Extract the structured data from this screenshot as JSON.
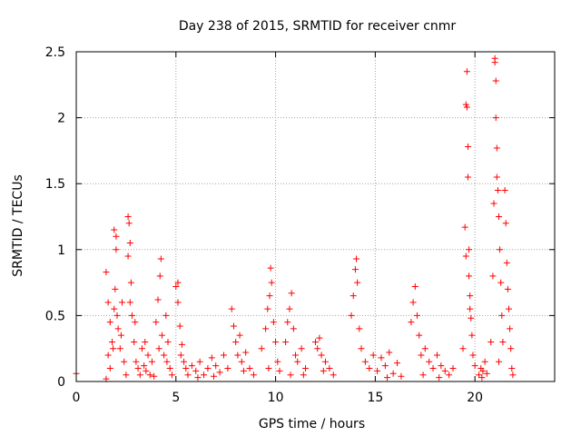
{
  "chart_data": {
    "type": "scatter",
    "title": "Day 238 of 2015, SRMTID for receiver cnmr",
    "xlabel": "GPS time / hours",
    "ylabel": "SRMTID / TECUs",
    "xlim": [
      0,
      24
    ],
    "ylim": [
      0,
      2.5
    ],
    "x_ticks": [
      0,
      5,
      10,
      15,
      20
    ],
    "x_tick_labels": [
      "0",
      "5",
      "10",
      "15",
      "20"
    ],
    "y_ticks": [
      0,
      0.5,
      1,
      1.5,
      2,
      2.5
    ],
    "y_tick_labels": [
      "0",
      "0.5",
      "1",
      "1.5",
      "2",
      "2.5"
    ],
    "grid": true,
    "marker": "+",
    "series": [
      {
        "name": "SRMTID",
        "color": "#ff0000",
        "points": [
          [
            0.0,
            0.06
          ],
          [
            1.5,
            0.83
          ],
          [
            1.6,
            0.6
          ],
          [
            1.7,
            0.45
          ],
          [
            1.8,
            0.3
          ],
          [
            1.6,
            0.2
          ],
          [
            1.7,
            0.1
          ],
          [
            1.5,
            0.02
          ],
          [
            1.9,
            0.55
          ],
          [
            1.95,
            0.7
          ],
          [
            2.0,
            1.0
          ],
          [
            2.0,
            1.1
          ],
          [
            1.9,
            1.15
          ],
          [
            2.1,
            0.4
          ],
          [
            2.2,
            0.25
          ],
          [
            2.05,
            0.5
          ],
          [
            2.3,
            0.6
          ],
          [
            2.4,
            0.15
          ],
          [
            2.5,
            0.05
          ],
          [
            2.25,
            0.35
          ],
          [
            1.85,
            0.25
          ],
          [
            2.6,
            1.25
          ],
          [
            2.65,
            1.2
          ],
          [
            2.7,
            1.05
          ],
          [
            2.6,
            0.95
          ],
          [
            2.75,
            0.75
          ],
          [
            2.8,
            0.5
          ],
          [
            2.9,
            0.3
          ],
          [
            3.0,
            0.15
          ],
          [
            2.95,
            0.45
          ],
          [
            2.7,
            0.6
          ],
          [
            3.1,
            0.1
          ],
          [
            3.2,
            0.05
          ],
          [
            3.3,
            0.25
          ],
          [
            3.4,
            0.12
          ],
          [
            3.5,
            0.08
          ],
          [
            3.6,
            0.2
          ],
          [
            3.7,
            0.05
          ],
          [
            3.8,
            0.15
          ],
          [
            3.9,
            0.04
          ],
          [
            3.45,
            0.3
          ],
          [
            4.0,
            0.45
          ],
          [
            4.1,
            0.62
          ],
          [
            4.2,
            0.8
          ],
          [
            4.25,
            0.93
          ],
          [
            4.3,
            0.35
          ],
          [
            4.4,
            0.2
          ],
          [
            4.5,
            0.5
          ],
          [
            4.6,
            0.3
          ],
          [
            4.7,
            0.1
          ],
          [
            4.8,
            0.05
          ],
          [
            4.15,
            0.25
          ],
          [
            4.55,
            0.15
          ],
          [
            5.0,
            0.72
          ],
          [
            5.1,
            0.6
          ],
          [
            5.2,
            0.42
          ],
          [
            5.3,
            0.28
          ],
          [
            5.1,
            0.75
          ],
          [
            5.4,
            0.15
          ],
          [
            5.5,
            0.1
          ],
          [
            5.6,
            0.05
          ],
          [
            5.25,
            0.2
          ],
          [
            5.8,
            0.12
          ],
          [
            6.0,
            0.08
          ],
          [
            6.2,
            0.15
          ],
          [
            6.4,
            0.05
          ],
          [
            6.6,
            0.1
          ],
          [
            6.8,
            0.18
          ],
          [
            7.0,
            0.12
          ],
          [
            7.2,
            0.07
          ],
          [
            7.4,
            0.2
          ],
          [
            7.6,
            0.1
          ],
          [
            6.1,
            0.03
          ],
          [
            6.9,
            0.04
          ],
          [
            7.8,
            0.55
          ],
          [
            7.9,
            0.42
          ],
          [
            8.0,
            0.3
          ],
          [
            8.1,
            0.2
          ],
          [
            8.2,
            0.35
          ],
          [
            8.3,
            0.15
          ],
          [
            8.5,
            0.22
          ],
          [
            8.7,
            0.1
          ],
          [
            8.9,
            0.05
          ],
          [
            8.4,
            0.08
          ],
          [
            9.3,
            0.25
          ],
          [
            9.5,
            0.4
          ],
          [
            9.6,
            0.55
          ],
          [
            9.7,
            0.65
          ],
          [
            9.75,
            0.86
          ],
          [
            9.8,
            0.75
          ],
          [
            9.9,
            0.45
          ],
          [
            10.0,
            0.3
          ],
          [
            10.1,
            0.15
          ],
          [
            10.2,
            0.08
          ],
          [
            9.65,
            0.1
          ],
          [
            10.5,
            0.3
          ],
          [
            10.6,
            0.45
          ],
          [
            10.7,
            0.55
          ],
          [
            10.8,
            0.67
          ],
          [
            10.9,
            0.4
          ],
          [
            11.0,
            0.2
          ],
          [
            11.1,
            0.15
          ],
          [
            11.3,
            0.25
          ],
          [
            11.5,
            0.1
          ],
          [
            10.75,
            0.05
          ],
          [
            11.4,
            0.05
          ],
          [
            12.0,
            0.3
          ],
          [
            12.1,
            0.25
          ],
          [
            12.2,
            0.33
          ],
          [
            12.3,
            0.2
          ],
          [
            12.5,
            0.15
          ],
          [
            12.7,
            0.1
          ],
          [
            12.9,
            0.05
          ],
          [
            12.4,
            0.08
          ],
          [
            13.8,
            0.5
          ],
          [
            13.9,
            0.65
          ],
          [
            14.0,
            0.85
          ],
          [
            14.05,
            0.93
          ],
          [
            14.1,
            0.75
          ],
          [
            14.2,
            0.4
          ],
          [
            14.3,
            0.25
          ],
          [
            14.5,
            0.15
          ],
          [
            14.7,
            0.1
          ],
          [
            14.9,
            0.2
          ],
          [
            15.1,
            0.08
          ],
          [
            15.3,
            0.18
          ],
          [
            15.5,
            0.12
          ],
          [
            15.7,
            0.22
          ],
          [
            15.9,
            0.06
          ],
          [
            16.1,
            0.14
          ],
          [
            16.3,
            0.04
          ],
          [
            15.6,
            0.03
          ],
          [
            16.8,
            0.45
          ],
          [
            16.9,
            0.6
          ],
          [
            17.0,
            0.72
          ],
          [
            17.1,
            0.5
          ],
          [
            17.2,
            0.35
          ],
          [
            17.3,
            0.2
          ],
          [
            17.5,
            0.25
          ],
          [
            17.7,
            0.15
          ],
          [
            17.9,
            0.1
          ],
          [
            18.1,
            0.2
          ],
          [
            18.3,
            0.12
          ],
          [
            18.5,
            0.08
          ],
          [
            18.7,
            0.05
          ],
          [
            18.9,
            0.1
          ],
          [
            17.4,
            0.05
          ],
          [
            18.2,
            0.03
          ],
          [
            19.4,
            0.25
          ],
          [
            19.5,
            1.17
          ],
          [
            19.55,
            0.95
          ],
          [
            19.6,
            2.35
          ],
          [
            19.6,
            2.08
          ],
          [
            19.65,
            1.78
          ],
          [
            19.65,
            1.55
          ],
          [
            19.7,
            1.0
          ],
          [
            19.7,
            0.8
          ],
          [
            19.75,
            0.65
          ],
          [
            19.8,
            0.48
          ],
          [
            19.85,
            0.35
          ],
          [
            19.9,
            0.2
          ],
          [
            20.0,
            0.12
          ],
          [
            19.55,
            2.1
          ],
          [
            19.75,
            0.55
          ],
          [
            20.2,
            0.05
          ],
          [
            20.3,
            0.1
          ],
          [
            20.4,
            0.08
          ],
          [
            20.5,
            0.15
          ],
          [
            20.6,
            0.06
          ],
          [
            20.35,
            0.03
          ],
          [
            20.8,
            0.3
          ],
          [
            20.9,
            0.8
          ],
          [
            20.95,
            1.35
          ],
          [
            21.0,
            2.42
          ],
          [
            21.0,
            2.45
          ],
          [
            21.05,
            2.28
          ],
          [
            21.05,
            2.0
          ],
          [
            21.1,
            1.77
          ],
          [
            21.1,
            1.55
          ],
          [
            21.15,
            1.45
          ],
          [
            21.2,
            1.25
          ],
          [
            21.25,
            1.0
          ],
          [
            21.3,
            0.75
          ],
          [
            21.35,
            0.5
          ],
          [
            21.4,
            0.3
          ],
          [
            21.5,
            1.45
          ],
          [
            21.55,
            1.2
          ],
          [
            21.6,
            0.9
          ],
          [
            21.65,
            0.7
          ],
          [
            21.7,
            0.55
          ],
          [
            21.75,
            0.4
          ],
          [
            21.8,
            0.25
          ],
          [
            21.85,
            0.1
          ],
          [
            21.9,
            0.05
          ],
          [
            21.2,
            0.15
          ]
        ]
      }
    ]
  }
}
